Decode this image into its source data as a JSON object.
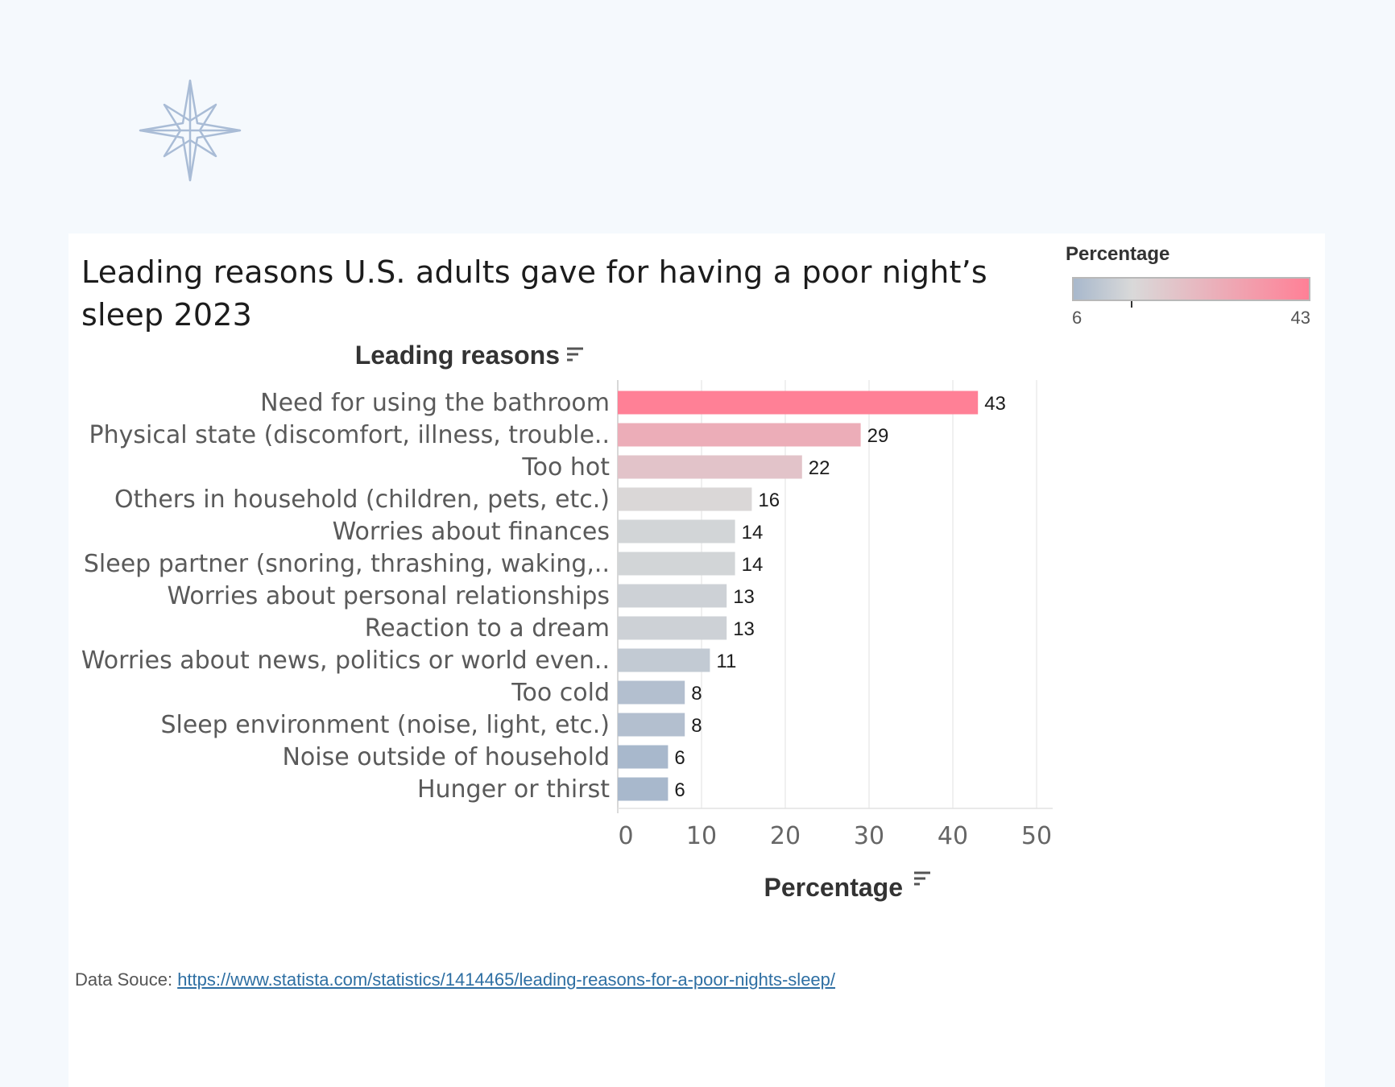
{
  "colors": {
    "background": "#f5f9fd",
    "low": "#a8b8cc",
    "mid": "#d9d9d9",
    "high": "#ff8096"
  },
  "logo": {
    "icon": "compass-star-icon"
  },
  "header": {
    "title": "Leading reasons U.S. adults gave for having a poor night’s sleep 2023"
  },
  "legend": {
    "title": "Percentage",
    "min_label": "6",
    "max_label": "43"
  },
  "footer": {
    "source_prefix": "Data Souce: ",
    "source_link": "https://www.statista.com/statistics/1414465/leading-reasons-for-a-poor-nights-sleep/"
  },
  "chart_data": {
    "type": "bar",
    "orientation": "horizontal",
    "title": "Leading reasons U.S. adults gave for having a poor night’s sleep 2023",
    "ylabel": "Leading reasons",
    "xlabel": "Percentage",
    "xlim": [
      0,
      50
    ],
    "xticks": [
      0,
      10,
      20,
      30,
      40,
      50
    ],
    "grid": true,
    "categories": [
      "Need for using the bathroom",
      "Physical state (discomfort, illness, trouble..",
      "Too hot",
      "Others in household (children, pets, etc.)",
      "Worries about finances",
      "Sleep partner (snoring, thrashing, waking,..",
      "Worries about personal relationships",
      "Reaction to a dream",
      "Worries about news, politics or world even..",
      "Too cold",
      "Sleep environment (noise, light, etc.)",
      "Noise outside of household",
      "Hunger or thirst"
    ],
    "values": [
      43,
      29,
      22,
      16,
      14,
      14,
      13,
      13,
      11,
      8,
      8,
      6,
      6
    ]
  }
}
